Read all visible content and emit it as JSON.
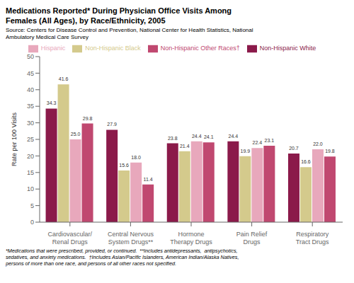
{
  "chart_data": {
    "type": "bar",
    "title": "Medications Reported* During Physician Office Visits Among\nFemales (All Ages), by Race/Ethnicity, 2005",
    "subtitle": "Source: Centers for Disease Control and Prevention, National Center for Health Statistics, National\nAmbulatory Medical Care Survey",
    "annotations": [
      "*Medications that were prescribed, provided, or continued.  **Includes antidepressants,  antipsychotics,\nsedatives, and anxiety medications.  †Includes Asian/Pacific Islanders, American Indian/Alaska Natives,\npersons of more than one race, and persons of all other races not specified."
    ],
    "y_label": "Rate per 100 Visits",
    "ylim": [
      0,
      50
    ],
    "yticks": [
      0,
      5,
      10,
      15,
      20,
      25,
      30,
      35,
      40,
      45,
      50
    ],
    "categories": [
      "Cardiovascular/\nRenal Drugs",
      "Central Nervous\nSystem Drugs**",
      "Hormone\nTherapy Drugs",
      "Pain Relief\nDrugs",
      "Respiratory\nTract Drugs"
    ],
    "series": [
      {
        "name": "Non-Hispanic White",
        "color": "#8B1A4A",
        "values": [
          34.3,
          27.9,
          23.8,
          24.4,
          20.7
        ],
        "value_labels": [
          "34.3",
          "27.9",
          "23.8",
          "24.4",
          "20.7"
        ]
      },
      {
        "name": "Non-Hispanic Black",
        "color": "#D4CA8C",
        "values": [
          41.6,
          15.6,
          21.4,
          19.9,
          16.6
        ],
        "value_labels": [
          "41.6",
          "15.6",
          "21.4",
          "19.9",
          "16.6"
        ]
      },
      {
        "name": "Hispanic",
        "color": "#E8A8BC",
        "values": [
          25.0,
          18.0,
          24.4,
          22.4,
          22.0
        ],
        "value_labels": [
          "25.0",
          "18.0",
          "24.4",
          "22.4",
          "22.0"
        ]
      },
      {
        "name": "Non-Hispanic Other Races†",
        "color": "#C04870",
        "values": [
          29.8,
          11.4,
          24.1,
          23.1,
          19.8
        ],
        "value_labels": [
          "29.8",
          "11.4",
          "24.1",
          "23.1",
          "19.8"
        ]
      }
    ],
    "data_labels": true,
    "legend": "top",
    "grid": false
  }
}
